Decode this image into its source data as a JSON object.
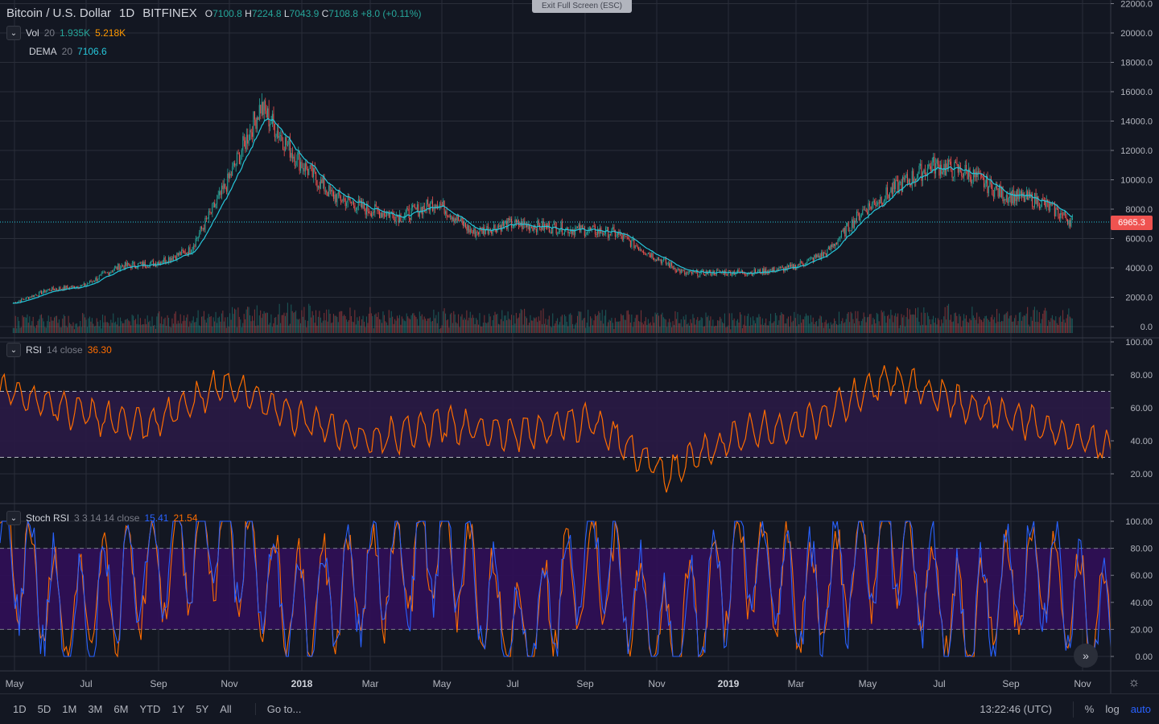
{
  "header": {
    "symbol": "Bitcoin / U.S. Dollar",
    "interval": "1D",
    "exchange": "BITFINEX",
    "open_label": "O",
    "open": "7100.8",
    "high_label": "H",
    "high": "7224.8",
    "low_label": "L",
    "low": "7043.9",
    "close_label": "C",
    "close": "7108.8",
    "change": "+8.0 (+0.11%)",
    "exit_fullscreen": "Exit Full Screen (ESC)"
  },
  "indicators": {
    "vol": {
      "name": "Vol",
      "params": "20",
      "value1": "1.935K",
      "value2": "5.218K"
    },
    "dema": {
      "name": "DEMA",
      "params": "20",
      "value": "7106.6"
    },
    "rsi": {
      "name": "RSI",
      "params": "14 close",
      "value": "36.30"
    },
    "stoch": {
      "name": "Stoch RSI",
      "params": "3 3 14 14 close",
      "k": "15.41",
      "d": "21.54"
    }
  },
  "price_scale": {
    "ticks": [
      "22000.0",
      "20000.0",
      "18000.0",
      "16000.0",
      "14000.0",
      "12000.0",
      "10000.0",
      "8000.0",
      "6000.0",
      "4000.0",
      "2000.0",
      "0.0"
    ],
    "last_price": "6965.3"
  },
  "rsi_scale": {
    "ticks": [
      "100.00",
      "80.00",
      "60.00",
      "40.00",
      "20.00"
    ]
  },
  "stoch_scale": {
    "ticks": [
      "100.00",
      "80.00",
      "60.00",
      "40.00",
      "20.00",
      "0.00"
    ]
  },
  "time_axis": {
    "labels": [
      "May",
      "Jul",
      "Sep",
      "Nov",
      "2018",
      "Mar",
      "May",
      "Jul",
      "Sep",
      "Nov",
      "2019",
      "Mar",
      "May",
      "Jul",
      "Sep",
      "Nov"
    ]
  },
  "bottom_bar": {
    "ranges": [
      "1D",
      "5D",
      "1M",
      "3M",
      "6M",
      "YTD",
      "1Y",
      "5Y",
      "All"
    ],
    "goto": "Go to...",
    "clock": "13:22:46 (UTC)",
    "percent": "%",
    "log": "log",
    "auto": "auto"
  },
  "colors": {
    "bg": "#131722",
    "grid": "#2a2e39",
    "up": "#26a69a",
    "down": "#ef5350",
    "dema": "#26c6da",
    "rsi": "#ff6d00",
    "stoch_k": "#2962ff",
    "stoch_d": "#ff6d00",
    "rsi_band": "#2a1a45",
    "stoch_band": "#2e0f55"
  },
  "chart_data": [
    {
      "type": "candlestick",
      "title": "Bitcoin / U.S. Dollar",
      "x": [
        "2017-05",
        "2017-06",
        "2017-07",
        "2017-08",
        "2017-09",
        "2017-10",
        "2017-11",
        "2017-12",
        "2018-01",
        "2018-02",
        "2018-03",
        "2018-04",
        "2018-05",
        "2018-06",
        "2018-07",
        "2018-08",
        "2018-09",
        "2018-10",
        "2018-11",
        "2018-12",
        "2019-01",
        "2019-02",
        "2019-03",
        "2019-04",
        "2019-05",
        "2019-06",
        "2019-07",
        "2019-08",
        "2019-09",
        "2019-10",
        "2019-11"
      ],
      "close": [
        1600,
        2500,
        2800,
        4100,
        4300,
        5200,
        9500,
        15000,
        11500,
        9000,
        8000,
        7500,
        8500,
        6400,
        7000,
        6800,
        6600,
        6400,
        5000,
        3600,
        3700,
        3700,
        4000,
        5000,
        7800,
        9500,
        11000,
        10500,
        9000,
        8600,
        7100
      ],
      "ylim": [
        0,
        22000
      ]
    },
    {
      "type": "line",
      "title": "RSI 14 close",
      "x": [
        "2017-05",
        "2017-07",
        "2017-09",
        "2017-11",
        "2018-01",
        "2018-03",
        "2018-05",
        "2018-07",
        "2018-09",
        "2018-11",
        "2019-01",
        "2019-03",
        "2019-05",
        "2019-07",
        "2019-09",
        "2019-11"
      ],
      "values": [
        72,
        58,
        48,
        75,
        55,
        40,
        50,
        45,
        52,
        20,
        44,
        52,
        78,
        62,
        50,
        36
      ],
      "ylim": [
        0,
        100
      ]
    },
    {
      "type": "line",
      "title": "Stoch RSI 3 3 14 14 close",
      "x": [
        "2017-05",
        "2017-07",
        "2017-09",
        "2017-11",
        "2018-01",
        "2018-03",
        "2018-05",
        "2018-07",
        "2018-09",
        "2018-11",
        "2019-01",
        "2019-03",
        "2019-05",
        "2019-07",
        "2019-09",
        "2019-11"
      ],
      "series": [
        {
          "name": "K",
          "values": [
            90,
            20,
            70,
            95,
            30,
            60,
            85,
            10,
            80,
            5,
            75,
            40,
            90,
            20,
            70,
            15
          ]
        },
        {
          "name": "D",
          "values": [
            85,
            25,
            65,
            90,
            35,
            55,
            80,
            15,
            75,
            10,
            70,
            45,
            85,
            25,
            65,
            22
          ]
        }
      ],
      "ylim": [
        0,
        100
      ]
    }
  ]
}
